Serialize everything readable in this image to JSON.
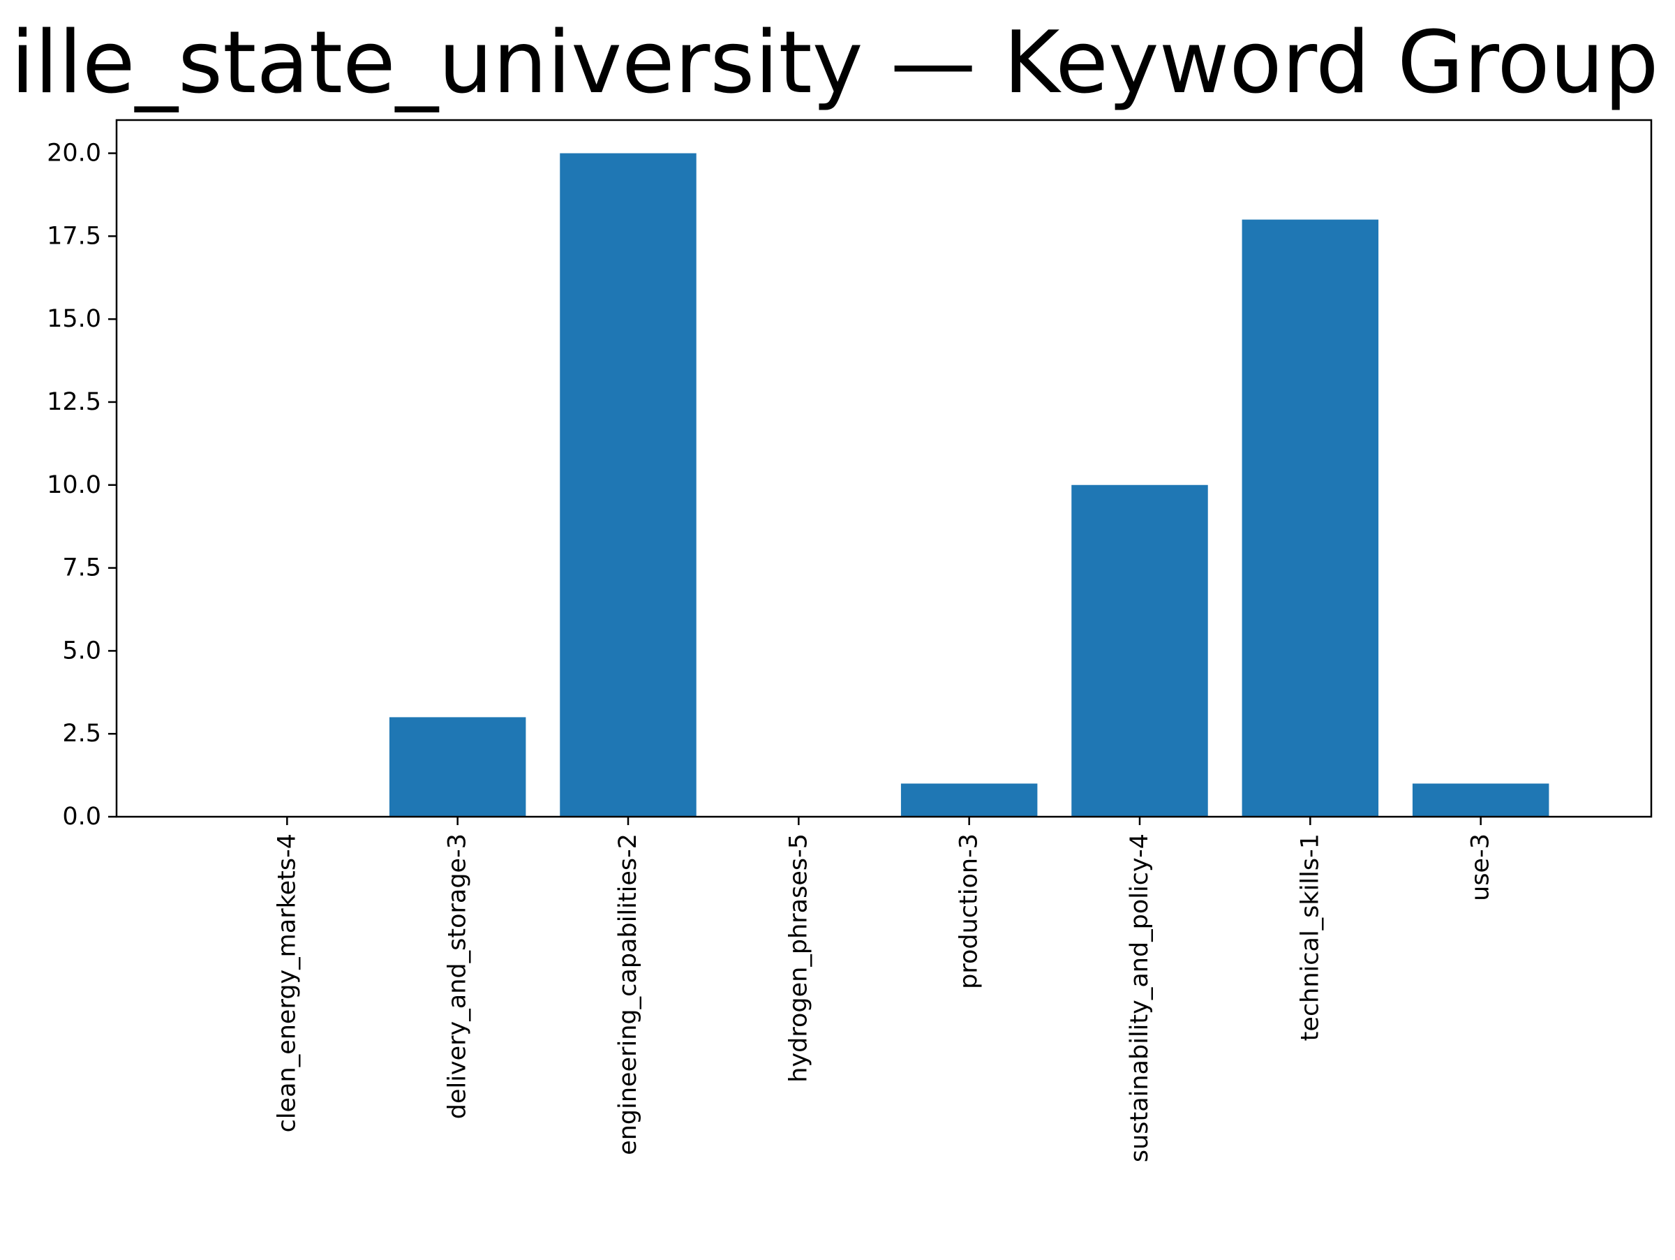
{
  "chart_data": {
    "type": "bar",
    "title": "ille_state_university — Keyword Group",
    "xlabel": "",
    "ylabel": "",
    "categories": [
      "clean_energy_markets-4",
      "delivery_and_storage-3",
      "engineering_capabilities-2",
      "hydrogen_phrases-5",
      "production-3",
      "sustainability_and_policy-4",
      "technical_skills-1",
      "use-3"
    ],
    "values": [
      0,
      3,
      20,
      0,
      1,
      10,
      18,
      1
    ],
    "ylim": [
      0,
      21
    ],
    "yticks": [
      "0.0",
      "2.5",
      "5.0",
      "7.5",
      "10.0",
      "12.5",
      "15.0",
      "17.5",
      "20.0"
    ],
    "grid": false,
    "legend": "none",
    "bar_color": "#1f77b4"
  }
}
